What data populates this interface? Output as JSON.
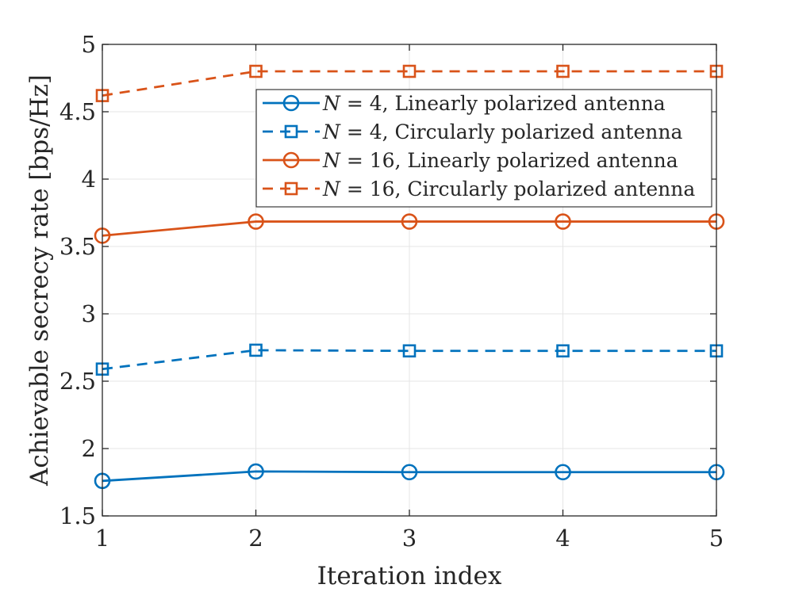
{
  "chart_data": {
    "type": "line",
    "title": "",
    "xlabel": "Iteration index",
    "ylabel": "Achievable secrecy rate [bps/Hz]",
    "xlim": [
      1,
      5
    ],
    "ylim": [
      1.5,
      5
    ],
    "xticks": [
      1,
      2,
      3,
      4,
      5
    ],
    "yticks": [
      1.5,
      2,
      2.5,
      3,
      3.5,
      4,
      4.5,
      5
    ],
    "xtick_labels": [
      "1",
      "2",
      "3",
      "4",
      "5"
    ],
    "ytick_labels": [
      "1.5",
      "2",
      "2.5",
      "3",
      "3.5",
      "4",
      "4.5",
      "5"
    ],
    "grid": true,
    "legend_position": "top-right",
    "x": [
      1,
      2,
      3,
      4,
      5
    ],
    "series": [
      {
        "name": "N = 4, Linearly polarized antenna",
        "legend_var": "N",
        "legend_rest": " = 4, Linearly polarized antenna",
        "values": [
          1.76,
          1.83,
          1.825,
          1.825,
          1.825
        ],
        "color": "#0072BD",
        "dash": "solid",
        "marker": "circle"
      },
      {
        "name": "N = 4, Circularly polarized antenna",
        "legend_var": "N",
        "legend_rest": " = 4, Circularly polarized antenna",
        "values": [
          2.59,
          2.73,
          2.725,
          2.725,
          2.725
        ],
        "color": "#0072BD",
        "dash": "dashed",
        "marker": "square"
      },
      {
        "name": "N = 16, Linearly polarized antenna",
        "legend_var": "N",
        "legend_rest": " = 16, Linearly polarized antenna",
        "values": [
          3.58,
          3.685,
          3.685,
          3.685,
          3.685
        ],
        "color": "#D95319",
        "dash": "solid",
        "marker": "circle"
      },
      {
        "name": "N = 16, Circularly polarized antenna",
        "legend_var": "N",
        "legend_rest": " = 16, Circularly polarized antenna",
        "values": [
          4.62,
          4.8,
          4.8,
          4.8,
          4.8
        ],
        "color": "#D95319",
        "dash": "dashed",
        "marker": "square"
      }
    ]
  }
}
